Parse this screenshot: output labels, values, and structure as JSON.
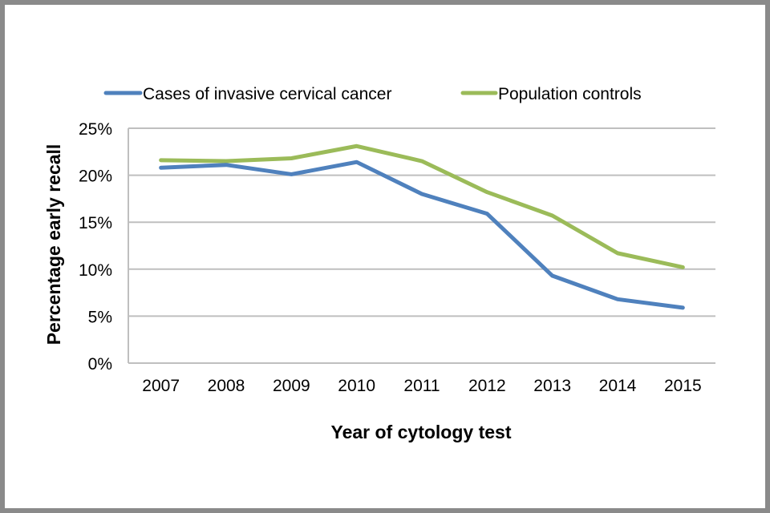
{
  "chart_data": {
    "type": "line",
    "title": "",
    "xlabel": "Year of cytology test",
    "ylabel": "Percentage early recall",
    "categories": [
      "2007",
      "2008",
      "2009",
      "2010",
      "2011",
      "2012",
      "2013",
      "2014",
      "2015"
    ],
    "series": [
      {
        "name": "Cases of invasive cervical cancer",
        "color": "#4f81bd",
        "values": [
          20.8,
          21.1,
          20.1,
          21.4,
          18.0,
          15.9,
          9.3,
          6.8,
          5.9
        ]
      },
      {
        "name": "Population controls",
        "color": "#9bbb59",
        "values": [
          21.6,
          21.5,
          21.8,
          23.1,
          21.5,
          18.2,
          15.7,
          11.7,
          10.2
        ]
      }
    ],
    "ylim": [
      0,
      25
    ],
    "yticks": [
      0,
      5,
      10,
      15,
      20,
      25
    ],
    "ytick_labels": [
      "0%",
      "5%",
      "10%",
      "15%",
      "20%",
      "25%"
    ],
    "grid": true,
    "legend_position": "top",
    "gridline_color": "#bfbfbf"
  }
}
